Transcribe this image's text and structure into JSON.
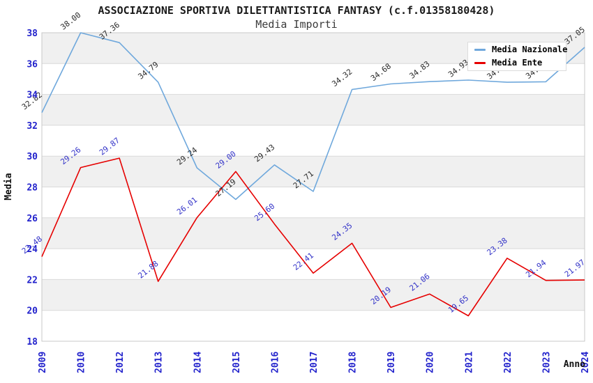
{
  "header": {
    "title": "ASSOCIAZIONE SPORTIVA DILETTANTISTICA FANTASY (c.f.01358180428)",
    "subtitle": "Media Importi"
  },
  "chart_data": {
    "type": "line",
    "title": "ASSOCIAZIONE SPORTIVA DILETTANTISTICA FANTASY (c.f.01358180428)",
    "subtitle": "Media Importi",
    "xlabel": "Anno",
    "ylabel": "Media",
    "ylim": [
      18,
      38
    ],
    "ytick_step": 2,
    "yticks": [
      18,
      20,
      22,
      24,
      26,
      28,
      30,
      32,
      34,
      36,
      38
    ],
    "grid": "horizontal-bands-alternating",
    "legend_position": "top-right",
    "categories": [
      "2009",
      "2010",
      "2012",
      "2013",
      "2014",
      "2015",
      "2016",
      "2017",
      "2018",
      "2019",
      "2020",
      "2021",
      "2022",
      "2023",
      "2024"
    ],
    "series": [
      {
        "name": "Media Nazionale",
        "color": "#6FA8DC",
        "label_color": "#2a2a2a",
        "values": [
          32.82,
          38.0,
          37.36,
          34.79,
          29.24,
          27.19,
          29.43,
          27.71,
          34.32,
          34.68,
          34.83,
          34.93,
          34.79,
          34.82,
          37.05
        ]
      },
      {
        "name": "Media Ente",
        "color": "#E60000",
        "label_color": "#3333C8",
        "values": [
          23.48,
          29.26,
          29.87,
          21.88,
          26.01,
          29.0,
          25.6,
          22.41,
          24.35,
          20.19,
          21.06,
          19.65,
          23.38,
          21.94,
          21.97
        ]
      }
    ],
    "colors": {
      "band_fill": "#f0f0f0",
      "grid_line": "#d9d9d9",
      "plot_border": "#c8c8c8",
      "tick_label": "#2222CC",
      "axis_title": "#111111"
    }
  }
}
